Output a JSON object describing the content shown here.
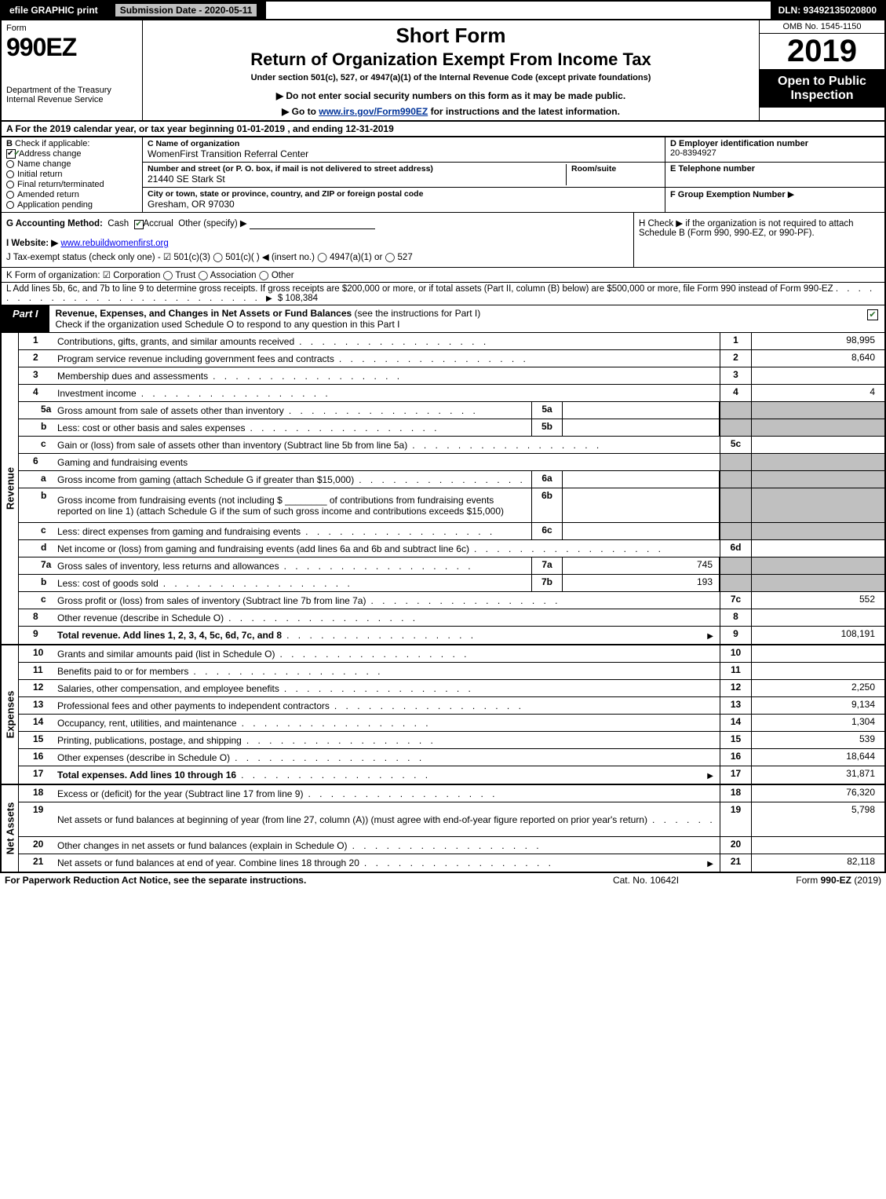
{
  "top": {
    "efile": "efile GRAPHIC print",
    "submission": "Submission Date - 2020-05-11",
    "dln": "DLN: 93492135020800"
  },
  "header": {
    "form_word": "Form",
    "form_num": "990EZ",
    "dept1": "Department of the Treasury",
    "dept2": "Internal Revenue Service",
    "short_form": "Short Form",
    "title2": "Return of Organization Exempt From Income Tax",
    "subtitle": "Under section 501(c), 527, or 4947(a)(1) of the Internal Revenue Code (except private foundations)",
    "warn": "▶ Do not enter social security numbers on this form as it may be made public.",
    "goto_pre": "▶ Go to ",
    "goto_link": "www.irs.gov/Form990EZ",
    "goto_post": " for instructions and the latest information.",
    "omb": "OMB No. 1545-1150",
    "year": "2019",
    "open": "Open to Public Inspection"
  },
  "rowA": "A  For the 2019 calendar year, or tax year beginning 01-01-2019 , and ending 12-31-2019",
  "colB": {
    "head": "B",
    "check_if": "Check if applicable:",
    "items": [
      {
        "label": "Address change",
        "checked": true
      },
      {
        "label": "Name change",
        "checked": false
      },
      {
        "label": "Initial return",
        "checked": false
      },
      {
        "label": "Final return/terminated",
        "checked": false
      },
      {
        "label": "Amended return",
        "checked": false
      },
      {
        "label": "Application pending",
        "checked": false
      }
    ]
  },
  "colC": {
    "name_label": "C Name of organization",
    "name_val": "WomenFirst Transition Referral Center",
    "addr_label": "Number and street (or P. O. box, if mail is not delivered to street address)",
    "room_label": "Room/suite",
    "addr_val": "21440 SE Stark St",
    "city_label": "City or town, state or province, country, and ZIP or foreign postal code",
    "city_val": "Gresham, OR  97030"
  },
  "colDE": {
    "d_label": "D Employer identification number",
    "d_val": "20-8394927",
    "e_label": "E Telephone number",
    "e_val": "",
    "f_label": "F Group Exemption Number",
    "f_arrow": "▶"
  },
  "rowG": {
    "label": "G Accounting Method:",
    "cash": "Cash",
    "accrual": "Accrual",
    "other": "Other (specify) ▶"
  },
  "rowH": {
    "text_pre": "H  Check ▶",
    "text_post": "if the organization is not required to attach Schedule B (Form 990, 990-EZ, or 990-PF)."
  },
  "rowI": {
    "label": "I Website: ▶",
    "val": "www.rebuildwomenfirst.org"
  },
  "rowJ": "J Tax-exempt status (check only one) - ☑ 501(c)(3)  ◯ 501(c)(  ) ◀ (insert no.)  ◯ 4947(a)(1) or  ◯ 527",
  "rowK": "K Form of organization:  ☑ Corporation  ◯ Trust  ◯ Association  ◯ Other",
  "rowL": {
    "text": "L Add lines 5b, 6c, and 7b to line 9 to determine gross receipts. If gross receipts are $200,000 or more, or if total assets (Part II, column (B) below) are $500,000 or more, file Form 990 instead of Form 990-EZ",
    "amount": "$ 108,384"
  },
  "part1": {
    "tab": "Part I",
    "title_main": "Revenue, Expenses, and Changes in Net Assets or Fund Balances",
    "title_sub": " (see the instructions for Part I)",
    "check_line": "Check if the organization used Schedule O to respond to any question in this Part I"
  },
  "revenue_label": "Revenue",
  "expenses_label": "Expenses",
  "netassets_label": "Net Assets",
  "revenue_rows": [
    {
      "n": "1",
      "desc": "Contributions, gifts, grants, and similar amounts received",
      "rn": "1",
      "rv": "98,995"
    },
    {
      "n": "2",
      "desc": "Program service revenue including government fees and contracts",
      "rn": "2",
      "rv": "8,640"
    },
    {
      "n": "3",
      "desc": "Membership dues and assessments",
      "rn": "3",
      "rv": ""
    },
    {
      "n": "4",
      "desc": "Investment income",
      "rn": "4",
      "rv": "4"
    },
    {
      "n": "5a",
      "sub": true,
      "desc": "Gross amount from sale of assets other than inventory",
      "mn": "5a",
      "mv": "",
      "shaded": true
    },
    {
      "n": "b",
      "sub": true,
      "desc": "Less: cost or other basis and sales expenses",
      "mn": "5b",
      "mv": "",
      "shaded": true
    },
    {
      "n": "c",
      "sub": true,
      "desc": "Gain or (loss) from sale of assets other than inventory (Subtract line 5b from line 5a)",
      "rn": "5c",
      "rv": ""
    },
    {
      "n": "6",
      "desc": "Gaming and fundraising events",
      "nocols": true
    },
    {
      "n": "a",
      "sub": true,
      "desc": "Gross income from gaming (attach Schedule G if greater than $15,000)",
      "mn": "6a",
      "mv": "",
      "shaded": true
    },
    {
      "n": "b",
      "sub": true,
      "desc": "Gross income from fundraising events (not including $ ________ of contributions from fundraising events reported on line 1) (attach Schedule G if the sum of such gross income and contributions exceeds $15,000)",
      "mn": "6b",
      "mv": "",
      "shaded": true,
      "tall": true
    },
    {
      "n": "c",
      "sub": true,
      "desc": "Less: direct expenses from gaming and fundraising events",
      "mn": "6c",
      "mv": "",
      "shaded": true
    },
    {
      "n": "d",
      "sub": true,
      "desc": "Net income or (loss) from gaming and fundraising events (add lines 6a and 6b and subtract line 6c)",
      "rn": "6d",
      "rv": ""
    },
    {
      "n": "7a",
      "sub": true,
      "desc": "Gross sales of inventory, less returns and allowances",
      "mn": "7a",
      "mv": "745",
      "shaded": true
    },
    {
      "n": "b",
      "sub": true,
      "desc": "Less: cost of goods sold",
      "mn": "7b",
      "mv": "193",
      "shaded": true
    },
    {
      "n": "c",
      "sub": true,
      "desc": "Gross profit or (loss) from sales of inventory (Subtract line 7b from line 7a)",
      "rn": "7c",
      "rv": "552"
    },
    {
      "n": "8",
      "desc": "Other revenue (describe in Schedule O)",
      "rn": "8",
      "rv": ""
    },
    {
      "n": "9",
      "desc": "Total revenue. Add lines 1, 2, 3, 4, 5c, 6d, 7c, and 8",
      "rn": "9",
      "rv": "108,191",
      "arrow": true,
      "bold": true
    }
  ],
  "expense_rows": [
    {
      "n": "10",
      "desc": "Grants and similar amounts paid (list in Schedule O)",
      "rn": "10",
      "rv": ""
    },
    {
      "n": "11",
      "desc": "Benefits paid to or for members",
      "rn": "11",
      "rv": ""
    },
    {
      "n": "12",
      "desc": "Salaries, other compensation, and employee benefits",
      "rn": "12",
      "rv": "2,250"
    },
    {
      "n": "13",
      "desc": "Professional fees and other payments to independent contractors",
      "rn": "13",
      "rv": "9,134"
    },
    {
      "n": "14",
      "desc": "Occupancy, rent, utilities, and maintenance",
      "rn": "14",
      "rv": "1,304"
    },
    {
      "n": "15",
      "desc": "Printing, publications, postage, and shipping",
      "rn": "15",
      "rv": "539"
    },
    {
      "n": "16",
      "desc": "Other expenses (describe in Schedule O)",
      "rn": "16",
      "rv": "18,644"
    },
    {
      "n": "17",
      "desc": "Total expenses. Add lines 10 through 16",
      "rn": "17",
      "rv": "31,871",
      "arrow": true,
      "bold": true
    }
  ],
  "netasset_rows": [
    {
      "n": "18",
      "desc": "Excess or (deficit) for the year (Subtract line 17 from line 9)",
      "rn": "18",
      "rv": "76,320"
    },
    {
      "n": "19",
      "desc": "Net assets or fund balances at beginning of year (from line 27, column (A)) (must agree with end-of-year figure reported on prior year's return)",
      "rn": "19",
      "rv": "5,798",
      "tall": true
    },
    {
      "n": "20",
      "desc": "Other changes in net assets or fund balances (explain in Schedule O)",
      "rn": "20",
      "rv": ""
    },
    {
      "n": "21",
      "desc": "Net assets or fund balances at end of year. Combine lines 18 through 20",
      "rn": "21",
      "rv": "82,118",
      "arrow": true
    }
  ],
  "footer": {
    "left": "For Paperwork Reduction Act Notice, see the separate instructions.",
    "mid": "Cat. No. 10642I",
    "right_pre": "Form ",
    "right_form": "990-EZ",
    "right_post": " (2019)"
  },
  "style": {
    "bg": "#ffffff",
    "black": "#000000",
    "shaded": "#c0c0c0",
    "link": "#003399",
    "check_green": "#2a6e2a"
  }
}
